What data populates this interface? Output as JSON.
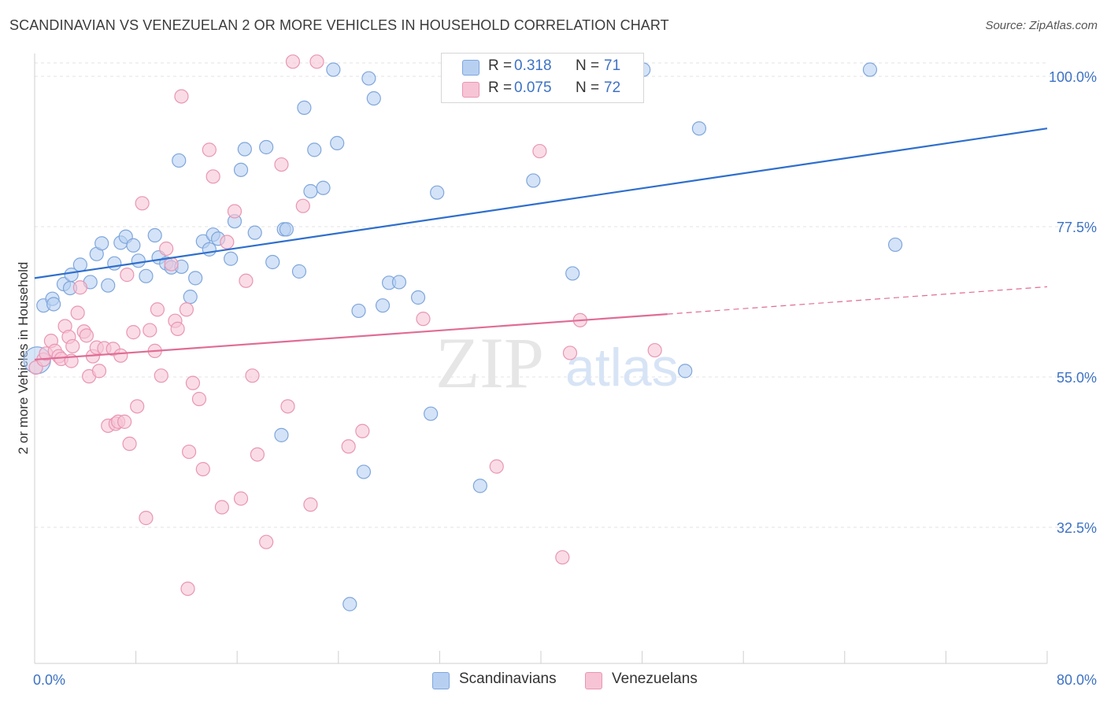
{
  "title": "SCANDINAVIAN VS VENEZUELAN 2 OR MORE VEHICLES IN HOUSEHOLD CORRELATION CHART",
  "source": "Source: ZipAtlas.com",
  "watermark": {
    "zip": "ZIP",
    "atlas": "atlas"
  },
  "legend": {
    "r_label": "R =",
    "n_label": "N =",
    "rows": [
      {
        "r": "0.318",
        "n": "71"
      },
      {
        "r": "0.075",
        "n": "72"
      }
    ]
  },
  "chart_data": {
    "type": "scatter",
    "title": "SCANDINAVIAN VS VENEZUELAN 2 OR MORE VEHICLES IN HOUSEHOLD CORRELATION CHART",
    "xlabel": "",
    "ylabel": "2 or more Vehicles in Household",
    "xlim": [
      0,
      80
    ],
    "ylim": [
      12,
      102
    ],
    "x_tick_labels": [
      "0.0%",
      "80.0%"
    ],
    "y_ticks": [
      32.5,
      55.0,
      77.5,
      100.0
    ],
    "y_tick_labels": [
      "32.5%",
      "55.0%",
      "77.5%",
      "100.0%"
    ],
    "grid": true,
    "legend_position": "top-center",
    "colors": {
      "scandinavians_fill": "#b7d0f2",
      "scandinavians_stroke": "#7fa6dc",
      "scandinavians_line": "#2f6fcd",
      "venezuelans_fill": "#f7c4d5",
      "venezuelans_stroke": "#e996b3",
      "venezuelans_line": "#e06c96"
    },
    "series": [
      {
        "name": "Scandinavians",
        "r": 0.318,
        "n": 71,
        "trend": {
          "x": [
            0,
            80
          ],
          "y": [
            69.8,
            92.2
          ]
        },
        "points": [
          [
            0.7,
            65.7
          ],
          [
            1.4,
            66.7
          ],
          [
            1.5,
            65.9
          ],
          [
            2.3,
            68.9
          ],
          [
            2.8,
            68.3
          ],
          [
            2.9,
            70.3
          ],
          [
            3.6,
            71.8
          ],
          [
            4.4,
            69.2
          ],
          [
            4.9,
            73.4
          ],
          [
            5.3,
            75.0
          ],
          [
            5.8,
            68.7
          ],
          [
            6.3,
            72.0
          ],
          [
            6.8,
            75.1
          ],
          [
            7.2,
            76.0
          ],
          [
            7.8,
            74.7
          ],
          [
            8.2,
            72.4
          ],
          [
            8.8,
            70.1
          ],
          [
            9.5,
            76.2
          ],
          [
            9.8,
            72.9
          ],
          [
            10.4,
            72.0
          ],
          [
            10.8,
            71.4
          ],
          [
            11.6,
            71.5
          ],
          [
            11.4,
            87.4
          ],
          [
            12.3,
            67.0
          ],
          [
            12.7,
            69.8
          ],
          [
            13.3,
            75.3
          ],
          [
            13.8,
            74.1
          ],
          [
            14.1,
            76.3
          ],
          [
            14.5,
            75.7
          ],
          [
            15.5,
            72.7
          ],
          [
            15.8,
            78.3
          ],
          [
            16.3,
            86.0
          ],
          [
            16.6,
            89.1
          ],
          [
            17.4,
            76.6
          ],
          [
            18.3,
            89.4
          ],
          [
            18.8,
            72.2
          ],
          [
            19.7,
            77.1
          ],
          [
            19.9,
            77.1
          ],
          [
            20.9,
            70.8
          ],
          [
            21.3,
            95.3
          ],
          [
            21.8,
            82.8
          ],
          [
            22.1,
            89.0
          ],
          [
            22.8,
            83.3
          ],
          [
            23.6,
            101.0
          ],
          [
            23.9,
            90.0
          ],
          [
            25.6,
            64.9
          ],
          [
            26.4,
            99.7
          ],
          [
            26.8,
            96.7
          ],
          [
            27.5,
            65.7
          ],
          [
            28.0,
            69.1
          ],
          [
            28.8,
            69.2
          ],
          [
            30.3,
            66.9
          ],
          [
            31.3,
            49.5
          ],
          [
            31.8,
            82.6
          ],
          [
            33.0,
            101.0
          ],
          [
            34.5,
            101.0
          ],
          [
            35.2,
            38.7
          ],
          [
            37.6,
            101.0
          ],
          [
            39.4,
            84.4
          ],
          [
            41.6,
            101.0
          ],
          [
            42.5,
            70.5
          ],
          [
            44.0,
            101.0
          ],
          [
            44.3,
            101.0
          ],
          [
            48.1,
            101.0
          ],
          [
            51.4,
            55.9
          ],
          [
            52.5,
            92.2
          ],
          [
            66.0,
            101.0
          ],
          [
            68.0,
            74.8
          ],
          [
            26.0,
            40.8
          ],
          [
            24.9,
            21.0
          ],
          [
            19.5,
            46.3
          ]
        ]
      },
      {
        "name": "Venezuelans",
        "r": 0.075,
        "n": 72,
        "trend": {
          "x": [
            0,
            80
          ],
          "y": [
            57.6,
            68.5
          ]
        },
        "trend_solid_until": 50,
        "points": [
          [
            0.1,
            56.4
          ],
          [
            0.7,
            57.6
          ],
          [
            0.9,
            58.5
          ],
          [
            1.3,
            60.4
          ],
          [
            1.6,
            58.9
          ],
          [
            1.9,
            58.1
          ],
          [
            2.1,
            57.7
          ],
          [
            2.4,
            62.6
          ],
          [
            2.7,
            61.0
          ],
          [
            3.0,
            59.6
          ],
          [
            3.4,
            64.6
          ],
          [
            3.6,
            68.4
          ],
          [
            3.9,
            61.8
          ],
          [
            4.1,
            61.2
          ],
          [
            4.3,
            55.1
          ],
          [
            4.6,
            58.1
          ],
          [
            4.9,
            59.4
          ],
          [
            5.1,
            55.9
          ],
          [
            5.5,
            59.3
          ],
          [
            5.8,
            47.7
          ],
          [
            6.2,
            59.2
          ],
          [
            6.4,
            48.0
          ],
          [
            6.6,
            48.3
          ],
          [
            6.8,
            58.2
          ],
          [
            7.1,
            48.3
          ],
          [
            7.3,
            70.3
          ],
          [
            7.5,
            45.0
          ],
          [
            7.8,
            61.7
          ],
          [
            8.1,
            50.6
          ],
          [
            8.5,
            81.0
          ],
          [
            8.8,
            33.9
          ],
          [
            9.1,
            62.0
          ],
          [
            9.5,
            58.9
          ],
          [
            9.7,
            65.1
          ],
          [
            10.0,
            55.2
          ],
          [
            10.4,
            74.2
          ],
          [
            10.8,
            71.9
          ],
          [
            11.1,
            63.4
          ],
          [
            11.3,
            62.2
          ],
          [
            11.6,
            97.0
          ],
          [
            12.0,
            65.1
          ],
          [
            12.2,
            43.8
          ],
          [
            12.5,
            54.1
          ],
          [
            13.0,
            51.7
          ],
          [
            13.3,
            41.2
          ],
          [
            13.8,
            89.0
          ],
          [
            14.1,
            85.0
          ],
          [
            14.8,
            35.5
          ],
          [
            15.2,
            75.2
          ],
          [
            15.8,
            79.8
          ],
          [
            16.3,
            36.8
          ],
          [
            16.7,
            69.4
          ],
          [
            17.2,
            55.2
          ],
          [
            17.6,
            43.4
          ],
          [
            18.3,
            30.3
          ],
          [
            19.5,
            86.8
          ],
          [
            20.0,
            50.6
          ],
          [
            20.4,
            102.2
          ],
          [
            21.2,
            80.6
          ],
          [
            21.8,
            35.9
          ],
          [
            22.3,
            102.2
          ],
          [
            24.8,
            44.6
          ],
          [
            25.9,
            46.9
          ],
          [
            30.7,
            63.7
          ],
          [
            36.5,
            41.6
          ],
          [
            39.9,
            88.8
          ],
          [
            41.7,
            28.0
          ],
          [
            42.3,
            58.6
          ],
          [
            43.1,
            63.5
          ],
          [
            49.0,
            59.0
          ],
          [
            2.9,
            57.4
          ],
          [
            12.1,
            23.3
          ]
        ]
      }
    ]
  }
}
